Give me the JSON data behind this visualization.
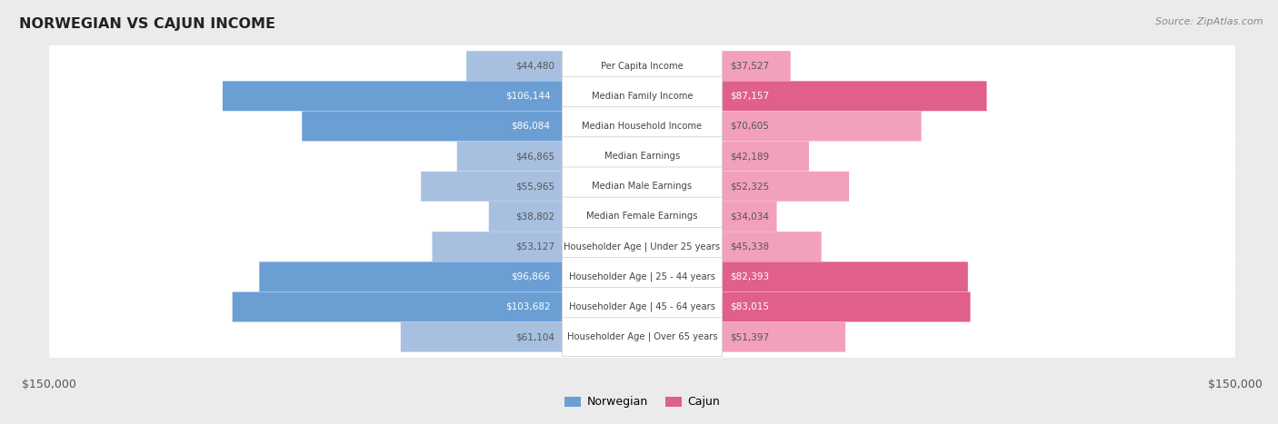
{
  "title": "NORWEGIAN VS CAJUN INCOME",
  "source": "Source: ZipAtlas.com",
  "categories": [
    "Per Capita Income",
    "Median Family Income",
    "Median Household Income",
    "Median Earnings",
    "Median Male Earnings",
    "Median Female Earnings",
    "Householder Age | Under 25 years",
    "Householder Age | 25 - 44 years",
    "Householder Age | 45 - 64 years",
    "Householder Age | Over 65 years"
  ],
  "norwegian_values": [
    44480,
    106144,
    86084,
    46865,
    55965,
    38802,
    53127,
    96866,
    103682,
    61104
  ],
  "cajun_values": [
    37527,
    87157,
    70605,
    42189,
    52325,
    34034,
    45338,
    82393,
    83015,
    51397
  ],
  "norwegian_labels": [
    "$44,480",
    "$106,144",
    "$86,084",
    "$46,865",
    "$55,965",
    "$38,802",
    "$53,127",
    "$96,866",
    "$103,682",
    "$61,104"
  ],
  "cajun_labels": [
    "$37,527",
    "$87,157",
    "$70,605",
    "$42,189",
    "$52,325",
    "$34,034",
    "$45,338",
    "$82,393",
    "$83,015",
    "$51,397"
  ],
  "max_value": 150000,
  "norwegian_color_light": "#a8c0e0",
  "norwegian_color_dark": "#6b9fd4",
  "cajun_color_light": "#f2a0be",
  "cajun_color_dark": "#e0608a",
  "norwegian_dark_threshold": 80000,
  "cajun_dark_threshold": 80000,
  "bg_color": "#ebebeb",
  "row_bg_color": "#ffffff",
  "title_color": "#222222",
  "label_text_color": "#444444",
  "value_dark_text": "#ffffff",
  "value_light_text": "#555555"
}
